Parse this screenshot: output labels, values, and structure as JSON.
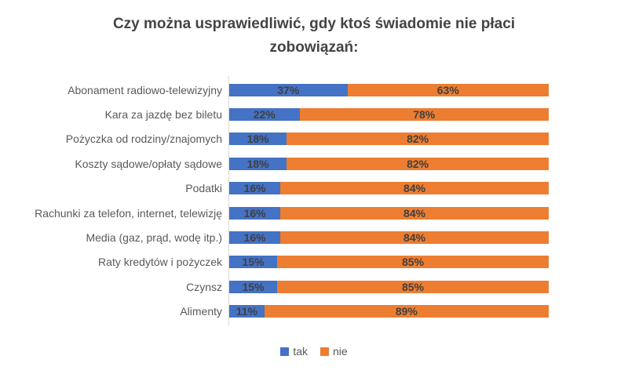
{
  "chart_data": {
    "type": "bar",
    "orientation": "horizontal",
    "stacked": true,
    "title": "Czy można usprawiedliwić, gdy ktoś świadomie nie płaci zobowiązań:",
    "categories": [
      "Abonament radiowo-telewizyjny",
      "Kara za jazdę bez biletu",
      "Pożyczka od rodziny/znajomych",
      "Koszty sądowe/opłaty sądowe",
      "Podatki",
      "Rachunki za telefon, internet, telewizję",
      "Media (gaz, prąd, wodę itp.)",
      "Raty kredytów i pożyczek",
      "Czynsz",
      "Alimenty"
    ],
    "series": [
      {
        "name": "tak",
        "color": "#4472C4",
        "values": [
          37,
          22,
          18,
          18,
          16,
          16,
          16,
          15,
          15,
          11
        ]
      },
      {
        "name": "nie",
        "color": "#ED7D31",
        "values": [
          63,
          78,
          82,
          82,
          84,
          84,
          84,
          85,
          85,
          89
        ]
      }
    ],
    "value_suffix": "%",
    "xlim": [
      0,
      100
    ],
    "data_labels": true,
    "grid": false,
    "legend_position": "bottom"
  },
  "style": {
    "title_color": "#444444",
    "category_label_color": "#595959",
    "data_label_color": "#404040",
    "axis_line_color": "#D9D9D9",
    "background": "#FFFFFF"
  }
}
